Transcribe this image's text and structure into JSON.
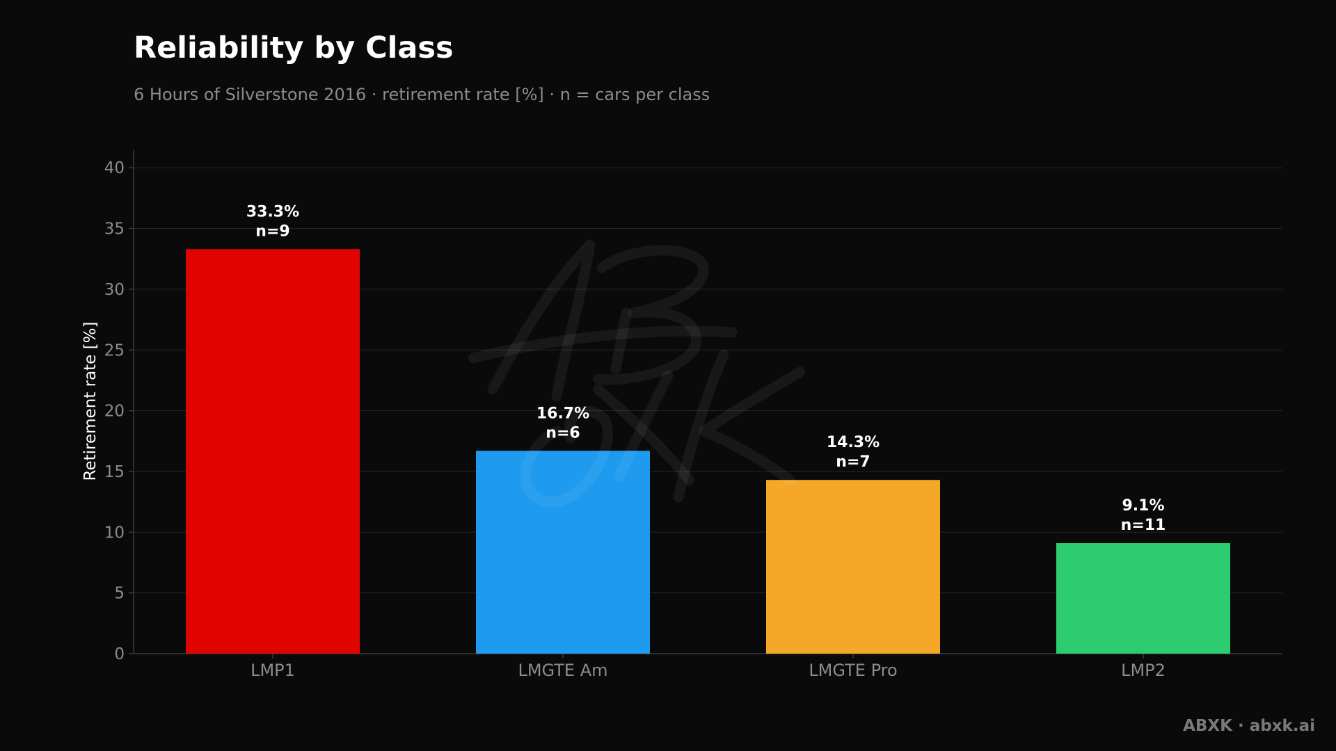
{
  "colors": {
    "background": "#0a0a0a",
    "grid": "#262626",
    "axis": "#3a3a3a",
    "tick_text": "#8c8c8c",
    "ylabel_text": "#ffffff",
    "data_label_text": "#ffffff"
  },
  "footer": {
    "credit": "ABXK · abxk.ai"
  },
  "chart_data": {
    "type": "bar",
    "title": "Reliability by Class",
    "subtitle": "6 Hours of Silverstone 2016 · retirement rate [%] · n = cars per class",
    "xlabel": "",
    "ylabel": "Retirement rate [%]",
    "ylim": [
      0,
      41.5
    ],
    "yticks": [
      0,
      5,
      10,
      15,
      20,
      25,
      30,
      35,
      40
    ],
    "grid": true,
    "legend": "none",
    "categories": [
      "LMP1",
      "LMGTE Am",
      "LMGTE Pro",
      "LMP2"
    ],
    "values": [
      33.3,
      16.7,
      14.3,
      9.1
    ],
    "n": [
      9,
      6,
      7,
      11
    ],
    "bar_colors": [
      "#e00400",
      "#1e9bef",
      "#f5a828",
      "#2ecc71"
    ],
    "data_labels": [
      {
        "value": "33.3%",
        "n": "n=9"
      },
      {
        "value": "16.7%",
        "n": "n=6"
      },
      {
        "value": "14.3%",
        "n": "n=7"
      },
      {
        "value": "9.1%",
        "n": "n=11"
      }
    ]
  }
}
